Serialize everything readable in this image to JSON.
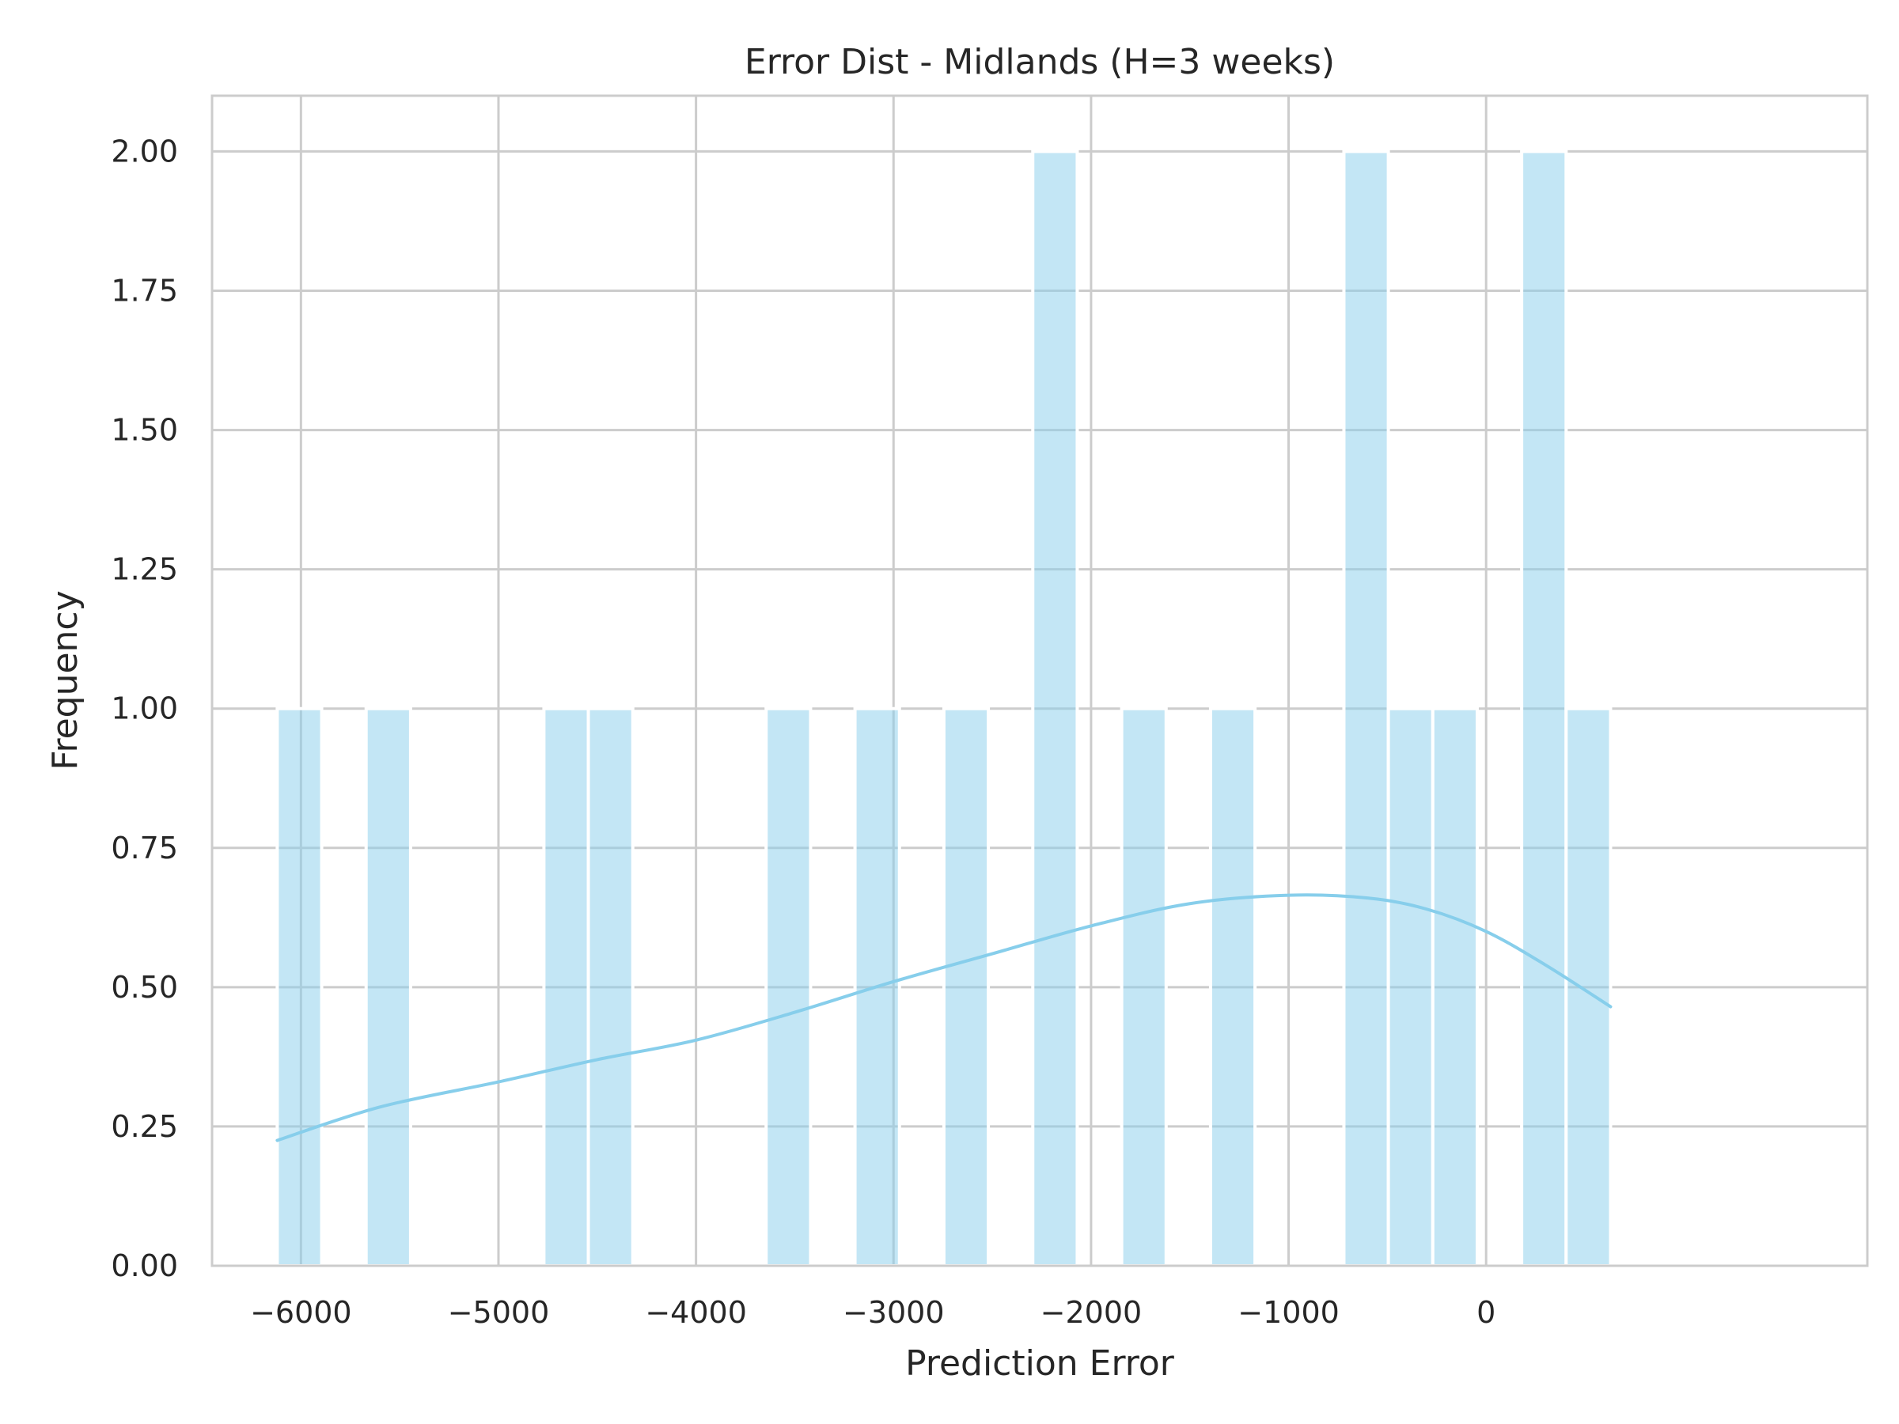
{
  "chart_data": {
    "type": "bar",
    "subtype": "histogram-with-kde",
    "title": "Error Dist - Midlands (H=3 weeks)",
    "xlabel": "Prediction Error",
    "ylabel": "Frequency",
    "xlim": [
      -6450,
      1930
    ],
    "ylim": [
      0,
      2.1
    ],
    "grid": true,
    "x_ticks": [
      -6000,
      -5000,
      -4000,
      -3000,
      -2000,
      -1000,
      0
    ],
    "x_tick_labels": [
      "−6000",
      "−5000",
      "−4000",
      "−3000",
      "−2000",
      "−1000",
      "0"
    ],
    "y_ticks": [
      0,
      0.25,
      0.5,
      0.75,
      1.0,
      1.25,
      1.5,
      1.75,
      2.0
    ],
    "y_tick_labels": [
      "0.00",
      "0.25",
      "0.50",
      "0.75",
      "1.00",
      "1.25",
      "1.50",
      "1.75",
      "2.00"
    ],
    "bar_color": "#87ceeb",
    "bar_opacity": 0.5,
    "kde_color": "#87ceeb",
    "bins": [
      {
        "start": -6120,
        "end": -5895,
        "count": 1
      },
      {
        "start": -5670,
        "end": -5445,
        "count": 1
      },
      {
        "start": -4770,
        "end": -4545,
        "count": 1
      },
      {
        "start": -4545,
        "end": -4320,
        "count": 1
      },
      {
        "start": -3645,
        "end": -3420,
        "count": 1
      },
      {
        "start": -3195,
        "end": -2970,
        "count": 1
      },
      {
        "start": -2745,
        "end": -2520,
        "count": 1
      },
      {
        "start": -2295,
        "end": -2070,
        "count": 2
      },
      {
        "start": -1845,
        "end": -1620,
        "count": 1
      },
      {
        "start": -1395,
        "end": -1170,
        "count": 1
      },
      {
        "start": -720,
        "end": -495,
        "count": 2
      },
      {
        "start": -495,
        "end": -270,
        "count": 1
      },
      {
        "start": -270,
        "end": -45,
        "count": 1
      },
      {
        "start": 180,
        "end": 405,
        "count": 2
      },
      {
        "start": 405,
        "end": 630,
        "count": 1
      }
    ],
    "kde": {
      "x": [
        -6120,
        -5600,
        -5000,
        -4500,
        -4000,
        -3500,
        -3000,
        -2500,
        -2000,
        -1500,
        -1000,
        -600,
        -300,
        0,
        300,
        630
      ],
      "y": [
        0.225,
        0.285,
        0.33,
        0.37,
        0.405,
        0.455,
        0.51,
        0.56,
        0.61,
        0.65,
        0.665,
        0.66,
        0.64,
        0.6,
        0.54,
        0.465
      ]
    }
  }
}
